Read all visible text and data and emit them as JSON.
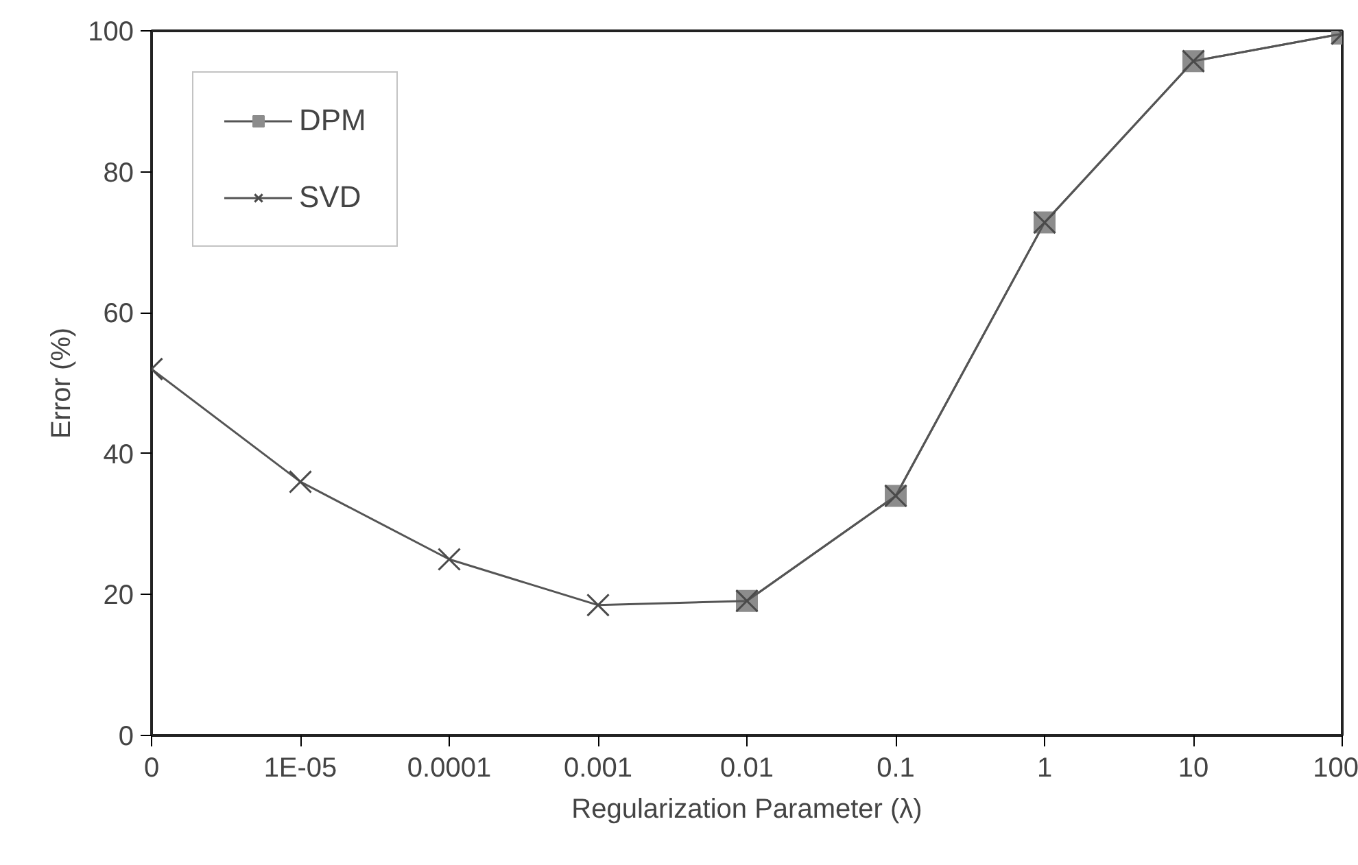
{
  "chart_data": {
    "type": "line",
    "xlabel": "Regularization Parameter (λ)",
    "ylabel": "Error (%)",
    "categories": [
      "0",
      "1E-05",
      "0.0001",
      "0.001",
      "0.01",
      "0.1",
      "1",
      "10",
      "100"
    ],
    "series": [
      {
        "name": "DPM",
        "color": "#8c8c8c",
        "marker": "square",
        "values": [
          null,
          null,
          null,
          null,
          19.1,
          34,
          72.8,
          95.7,
          99.6
        ]
      },
      {
        "name": "SVD",
        "color": "#4a4a4a",
        "marker": "cross",
        "values": [
          52,
          36,
          25,
          18.5,
          19.1,
          34,
          72.8,
          95.7,
          99.6
        ]
      }
    ],
    "ylim": [
      0,
      100
    ],
    "yticks": [
      0,
      20,
      40,
      60,
      80,
      100
    ],
    "grid": false,
    "legend": "top left",
    "line_style": "solid"
  }
}
